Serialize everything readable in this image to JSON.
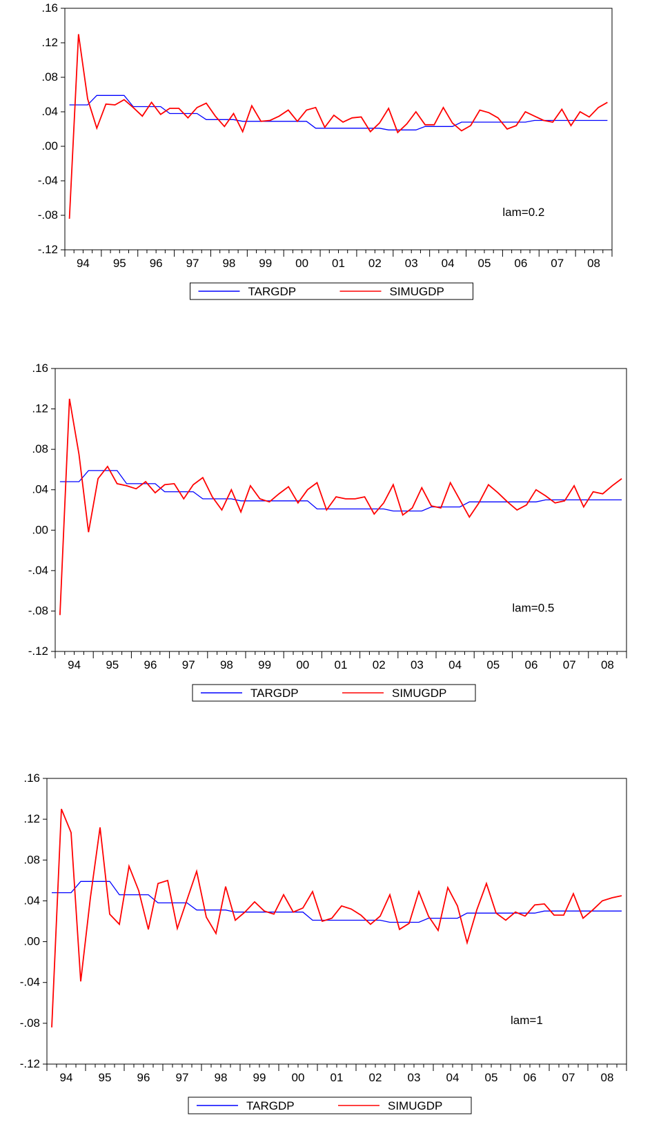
{
  "colors": {
    "targgdp": "#0000ff",
    "simugdp": "#ff0000",
    "axis": "#000000",
    "background": "#ffffff"
  },
  "chart_data": [
    {
      "type": "line",
      "annotation": "lam=0.2",
      "ylim": [
        -0.12,
        0.16
      ],
      "yticks": [
        ".16",
        ".12",
        ".08",
        ".04",
        ".00",
        "-.04",
        "-.08",
        "-.12"
      ],
      "yticks_values": [
        0.16,
        0.12,
        0.08,
        0.04,
        0.0,
        -0.04,
        -0.08,
        -0.12
      ],
      "xticks": [
        "94",
        "95",
        "96",
        "97",
        "98",
        "99",
        "00",
        "01",
        "02",
        "03",
        "04",
        "05",
        "06",
        "07",
        "08"
      ],
      "x_count": 60,
      "grid": false,
      "legend_position": "bottom-center",
      "series": [
        {
          "name": "TARGDP",
          "color": "#0000ff",
          "values": [
            0.048,
            0.048,
            0.048,
            0.059,
            0.059,
            0.059,
            0.059,
            0.046,
            0.046,
            0.046,
            0.046,
            0.038,
            0.038,
            0.038,
            0.038,
            0.031,
            0.031,
            0.031,
            0.031,
            0.029,
            0.029,
            0.029,
            0.029,
            0.029,
            0.029,
            0.029,
            0.029,
            0.021,
            0.021,
            0.021,
            0.021,
            0.021,
            0.021,
            0.021,
            0.021,
            0.019,
            0.019,
            0.019,
            0.019,
            0.023,
            0.023,
            0.023,
            0.023,
            0.028,
            0.028,
            0.028,
            0.028,
            0.028,
            0.028,
            0.028,
            0.028,
            0.03,
            0.03,
            0.03,
            0.03,
            0.03,
            0.03,
            0.03,
            0.03,
            0.03
          ]
        },
        {
          "name": "SIMUGDP",
          "color": "#ff0000",
          "values": [
            -0.084,
            0.13,
            0.055,
            0.021,
            0.049,
            0.048,
            0.054,
            0.045,
            0.035,
            0.051,
            0.037,
            0.044,
            0.044,
            0.033,
            0.045,
            0.05,
            0.035,
            0.023,
            0.038,
            0.017,
            0.047,
            0.029,
            0.03,
            0.035,
            0.042,
            0.029,
            0.042,
            0.045,
            0.022,
            0.036,
            0.028,
            0.033,
            0.034,
            0.017,
            0.027,
            0.044,
            0.016,
            0.026,
            0.04,
            0.025,
            0.025,
            0.045,
            0.027,
            0.018,
            0.024,
            0.042,
            0.039,
            0.033,
            0.02,
            0.024,
            0.04,
            0.035,
            0.03,
            0.028,
            0.043,
            0.024,
            0.04,
            0.034,
            0.045,
            0.051
          ]
        }
      ]
    },
    {
      "type": "line",
      "annotation": "lam=0.5",
      "ylim": [
        -0.12,
        0.16
      ],
      "yticks": [
        ".16",
        ".12",
        ".08",
        ".04",
        ".00",
        "-.04",
        "-.08",
        "-.12"
      ],
      "yticks_values": [
        0.16,
        0.12,
        0.08,
        0.04,
        0.0,
        -0.04,
        -0.08,
        -0.12
      ],
      "xticks": [
        "94",
        "95",
        "96",
        "97",
        "98",
        "99",
        "00",
        "01",
        "02",
        "03",
        "04",
        "05",
        "06",
        "07",
        "08"
      ],
      "x_count": 60,
      "grid": false,
      "legend_position": "bottom-center",
      "series": [
        {
          "name": "TARGDP",
          "color": "#0000ff",
          "values": [
            0.048,
            0.048,
            0.048,
            0.059,
            0.059,
            0.059,
            0.059,
            0.046,
            0.046,
            0.046,
            0.046,
            0.038,
            0.038,
            0.038,
            0.038,
            0.031,
            0.031,
            0.031,
            0.031,
            0.029,
            0.029,
            0.029,
            0.029,
            0.029,
            0.029,
            0.029,
            0.029,
            0.021,
            0.021,
            0.021,
            0.021,
            0.021,
            0.021,
            0.021,
            0.021,
            0.019,
            0.019,
            0.019,
            0.019,
            0.023,
            0.023,
            0.023,
            0.023,
            0.028,
            0.028,
            0.028,
            0.028,
            0.028,
            0.028,
            0.028,
            0.028,
            0.03,
            0.03,
            0.03,
            0.03,
            0.03,
            0.03,
            0.03,
            0.03,
            0.03
          ]
        },
        {
          "name": "SIMUGDP",
          "color": "#ff0000",
          "values": [
            -0.084,
            0.13,
            0.075,
            -0.002,
            0.051,
            0.063,
            0.046,
            0.044,
            0.041,
            0.048,
            0.037,
            0.045,
            0.046,
            0.031,
            0.045,
            0.052,
            0.033,
            0.02,
            0.04,
            0.018,
            0.044,
            0.031,
            0.028,
            0.036,
            0.043,
            0.027,
            0.04,
            0.047,
            0.02,
            0.033,
            0.031,
            0.031,
            0.033,
            0.016,
            0.027,
            0.045,
            0.015,
            0.022,
            0.042,
            0.024,
            0.022,
            0.047,
            0.03,
            0.013,
            0.027,
            0.045,
            0.037,
            0.028,
            0.02,
            0.025,
            0.04,
            0.034,
            0.027,
            0.029,
            0.044,
            0.023,
            0.038,
            0.036,
            0.044,
            0.051
          ]
        }
      ]
    },
    {
      "type": "line",
      "annotation": "lam=1",
      "ylim": [
        -0.12,
        0.16
      ],
      "yticks": [
        ".16",
        ".12",
        ".08",
        ".04",
        ".00",
        "-.04",
        "-.08",
        "-.12"
      ],
      "yticks_values": [
        0.16,
        0.12,
        0.08,
        0.04,
        0.0,
        -0.04,
        -0.08,
        -0.12
      ],
      "xticks": [
        "94",
        "95",
        "96",
        "97",
        "98",
        "99",
        "00",
        "01",
        "02",
        "03",
        "04",
        "05",
        "06",
        "07",
        "08"
      ],
      "x_count": 60,
      "grid": false,
      "legend_position": "bottom-center",
      "series": [
        {
          "name": "TARGDP",
          "color": "#0000ff",
          "values": [
            0.048,
            0.048,
            0.048,
            0.059,
            0.059,
            0.059,
            0.059,
            0.046,
            0.046,
            0.046,
            0.046,
            0.038,
            0.038,
            0.038,
            0.038,
            0.031,
            0.031,
            0.031,
            0.031,
            0.029,
            0.029,
            0.029,
            0.029,
            0.029,
            0.029,
            0.029,
            0.029,
            0.021,
            0.021,
            0.021,
            0.021,
            0.021,
            0.021,
            0.021,
            0.021,
            0.019,
            0.019,
            0.019,
            0.019,
            0.023,
            0.023,
            0.023,
            0.023,
            0.028,
            0.028,
            0.028,
            0.028,
            0.028,
            0.028,
            0.028,
            0.028,
            0.03,
            0.03,
            0.03,
            0.03,
            0.03,
            0.03,
            0.03,
            0.03,
            0.03
          ]
        },
        {
          "name": "SIMUGDP",
          "color": "#ff0000",
          "values": [
            -0.084,
            0.13,
            0.107,
            -0.039,
            0.043,
            0.112,
            0.027,
            0.017,
            0.074,
            0.05,
            0.012,
            0.057,
            0.06,
            0.013,
            0.041,
            0.069,
            0.024,
            0.008,
            0.054,
            0.021,
            0.029,
            0.039,
            0.03,
            0.027,
            0.046,
            0.029,
            0.033,
            0.049,
            0.02,
            0.023,
            0.035,
            0.032,
            0.026,
            0.017,
            0.025,
            0.046,
            0.012,
            0.018,
            0.049,
            0.025,
            0.011,
            0.053,
            0.035,
            -0.001,
            0.031,
            0.057,
            0.028,
            0.021,
            0.029,
            0.025,
            0.036,
            0.037,
            0.026,
            0.026,
            0.047,
            0.023,
            0.031,
            0.04,
            0.043,
            0.045
          ]
        }
      ]
    }
  ]
}
